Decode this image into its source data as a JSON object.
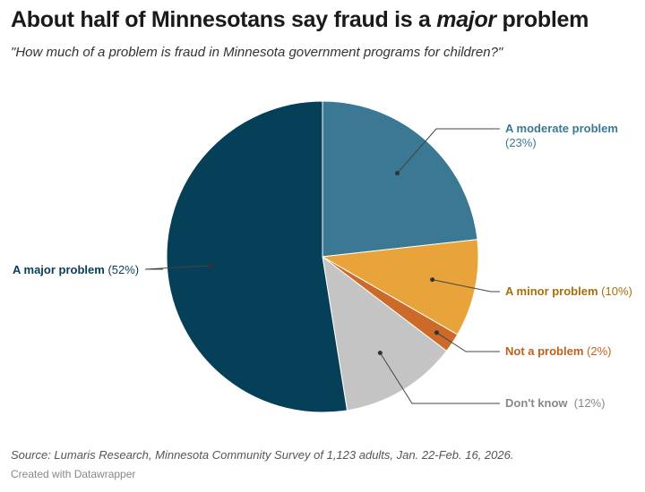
{
  "title": {
    "before": "About half of Minnesotans say fraud is a ",
    "emphasis": "major",
    "after": " problem"
  },
  "subtitle": "\"How much of a problem is fraud in Minnesota government programs for children?\"",
  "chart_data": {
    "type": "pie",
    "start": "top",
    "direction": "clockwise",
    "slices": [
      {
        "label": "A moderate problem",
        "value": 23,
        "display": "(23%)",
        "color": "#3a7893"
      },
      {
        "label": "A minor problem",
        "value": 10,
        "display": "(10%)",
        "color": "#e8a33a",
        "text_color": "#a86e0a"
      },
      {
        "label": "Not a problem",
        "value": 2,
        "display": "(2%)",
        "color": "#cc6a2a",
        "text_color": "#c25e1c"
      },
      {
        "label": "Don't know",
        "value": 12,
        "display": "(12%)",
        "color": "#c4c4c4",
        "text_color": "#888888"
      },
      {
        "label": "A major problem",
        "value": 52,
        "display": "(52%)",
        "color": "#063f58"
      }
    ]
  },
  "source": "Source: Lumaris Research, Minnesota Community Survey of 1,123 adults, Jan. 22-Feb. 16, 2026.",
  "credit": "Created with Datawrapper"
}
